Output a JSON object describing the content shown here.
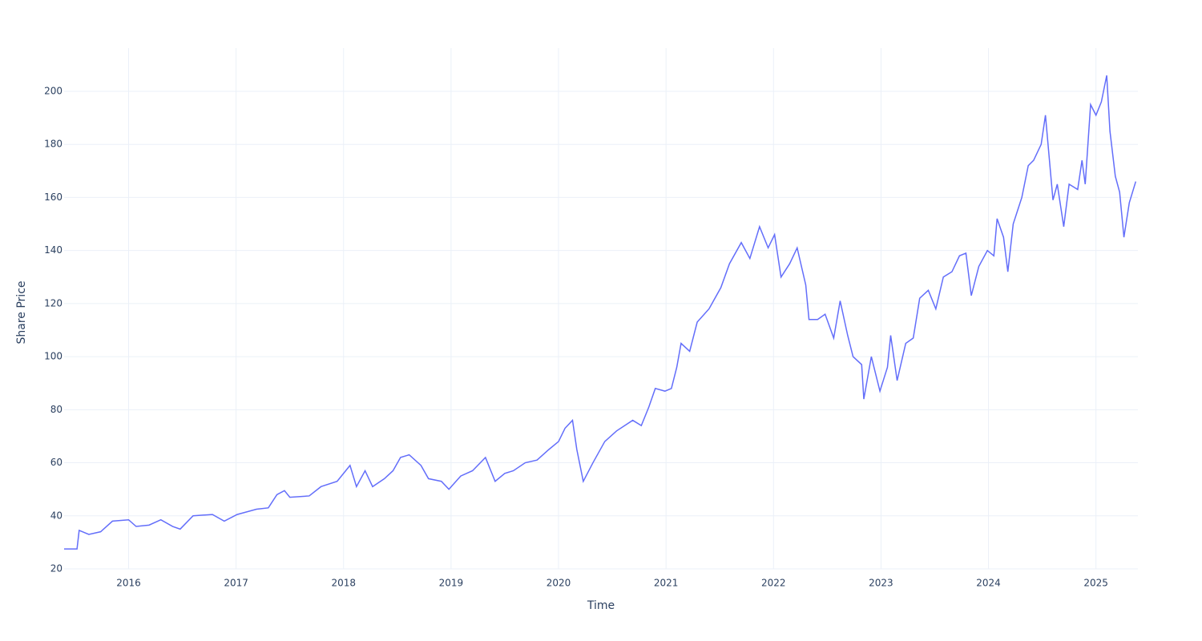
{
  "chart_data": {
    "type": "line",
    "x_label": "Time",
    "y_label": "Share Price",
    "xlim": [
      2015.4,
      2025.39
    ],
    "xticks": [
      2016,
      2017,
      2018,
      2019,
      2020,
      2021,
      2022,
      2023,
      2024,
      2025
    ],
    "ylim": [
      20,
      216.3
    ],
    "yticks": [
      20,
      40,
      60,
      80,
      100,
      120,
      140,
      160,
      180,
      200
    ],
    "grid": true,
    "x": [
      2015.4,
      2015.52,
      2015.54,
      2015.63,
      2015.74,
      2015.85,
      2016.0,
      2016.07,
      2016.19,
      2016.3,
      2016.41,
      2016.48,
      2016.6,
      2016.78,
      2016.89,
      2017.01,
      2017.19,
      2017.3,
      2017.38,
      2017.45,
      2017.5,
      2017.68,
      2017.79,
      2017.94,
      2018.06,
      2018.12,
      2018.2,
      2018.27,
      2018.38,
      2018.46,
      2018.53,
      2018.61,
      2018.72,
      2018.79,
      2018.91,
      2018.98,
      2019.09,
      2019.2,
      2019.32,
      2019.41,
      2019.5,
      2019.58,
      2019.69,
      2019.8,
      2019.91,
      2020.0,
      2020.06,
      2020.13,
      2020.17,
      2020.23,
      2020.32,
      2020.43,
      2020.54,
      2020.69,
      2020.77,
      2020.84,
      2020.9,
      2020.99,
      2021.05,
      2021.1,
      2021.14,
      2021.22,
      2021.29,
      2021.4,
      2021.51,
      2021.59,
      2021.7,
      2021.78,
      2021.87,
      2021.95,
      2022.01,
      2022.07,
      2022.15,
      2022.22,
      2022.3,
      2022.33,
      2022.41,
      2022.48,
      2022.56,
      2022.62,
      2022.69,
      2022.74,
      2022.82,
      2022.84,
      2022.91,
      2022.99,
      2023.06,
      2023.09,
      2023.15,
      2023.23,
      2023.3,
      2023.36,
      2023.44,
      2023.51,
      2023.58,
      2023.66,
      2023.73,
      2023.79,
      2023.84,
      2023.91,
      2023.99,
      2024.05,
      2024.08,
      2024.14,
      2024.18,
      2024.23,
      2024.31,
      2024.37,
      2024.42,
      2024.49,
      2024.53,
      2024.6,
      2024.64,
      2024.7,
      2024.75,
      2024.83,
      2024.87,
      2024.9,
      2024.95,
      2025.0,
      2025.05,
      2025.1,
      2025.13,
      2025.18,
      2025.22,
      2025.26,
      2025.31,
      2025.37
    ],
    "series": [
      {
        "name": "Share Price",
        "color": "#636efa",
        "values": [
          27.5,
          27.5,
          34.5,
          33,
          34,
          38,
          38.5,
          36,
          36.5,
          38.5,
          36,
          35,
          40,
          40.5,
          38,
          40.5,
          42.5,
          43,
          48,
          49.5,
          47,
          47.5,
          51,
          53,
          59,
          51,
          57,
          51,
          54,
          57,
          62,
          63,
          59,
          54,
          53,
          50,
          55,
          57,
          62,
          53,
          56,
          57,
          60,
          61,
          65,
          68,
          73,
          76,
          65,
          53,
          60,
          68,
          72,
          76,
          74,
          81,
          88,
          87,
          88,
          96,
          105,
          102,
          113,
          118,
          126,
          135,
          143,
          137,
          149,
          141,
          146,
          130,
          135,
          141,
          127,
          114,
          114,
          116,
          107,
          121,
          108,
          100,
          97,
          84,
          100,
          87,
          96,
          108,
          91,
          105,
          107,
          122,
          125,
          118,
          130,
          132,
          138,
          139,
          123,
          134,
          140,
          138,
          152,
          145,
          132,
          150,
          160,
          172,
          174,
          180,
          191,
          159,
          165,
          149,
          165,
          163,
          174,
          165,
          195,
          191,
          196,
          206,
          185,
          168,
          162,
          145,
          158,
          166
        ]
      }
    ]
  }
}
